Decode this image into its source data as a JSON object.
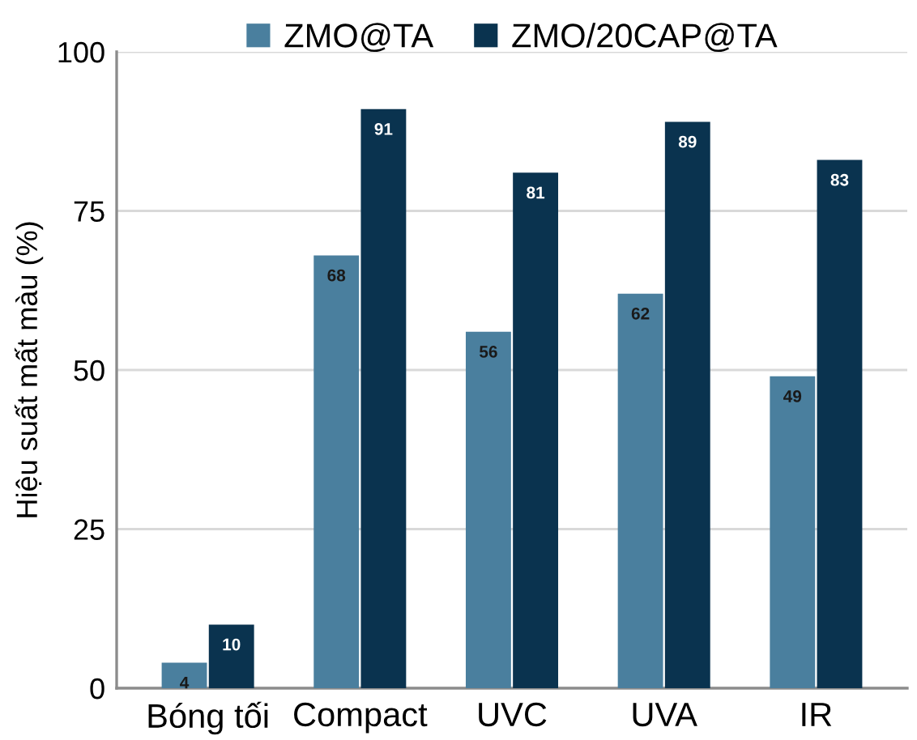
{
  "chart_data": {
    "type": "bar",
    "ylabel": "Hiệu suất mất màu (%)",
    "categories": [
      "Bóng tối",
      "Compact",
      "UVC",
      "UVA",
      "IR"
    ],
    "series": [
      {
        "name": "ZMO@TA",
        "color": "#4a7f9e",
        "values": [
          4,
          68,
          56,
          62,
          49
        ]
      },
      {
        "name": "ZMO/20CAP@TA",
        "color": "#0a334f",
        "values": [
          10,
          91,
          81,
          89,
          83
        ]
      }
    ],
    "ylim": [
      0,
      100
    ],
    "yticks": [
      0,
      25,
      50,
      75,
      100
    ],
    "grid": "y",
    "legend": "top",
    "data_labels": true
  }
}
